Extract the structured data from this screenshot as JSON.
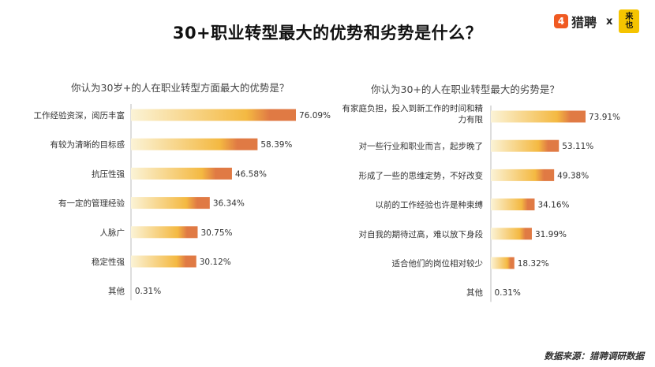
{
  "title": "30+职业转型最大的优势和劣势是什么？",
  "logo": {
    "brand": "猎聘",
    "brand_icon_glyph": "4",
    "separator": "x",
    "partner_top": "来",
    "partner_bottom": "也"
  },
  "source": "数据来源：猎聘调研数据",
  "colors": {
    "bar_light": "#fbf3d6",
    "bar_mid": "#f4b942",
    "bar_dark": "#e07a44",
    "baseline": "#bbbbbb",
    "brand": "#f05a22",
    "partner": "#f5c400"
  },
  "chart_data": [
    {
      "type": "bar",
      "orientation": "horizontal",
      "title": "你认为30岁+的人在职业转型方面最大的优势是？",
      "unit": "%",
      "categories": [
        "工作经验资深，阅历丰富",
        "有较为清晰的目标感",
        "抗压性强",
        "有一定的管理经验",
        "人脉广",
        "稳定性强",
        "其他"
      ],
      "values": [
        76.09,
        58.39,
        46.58,
        36.34,
        30.75,
        30.12,
        0.31
      ],
      "labels": [
        "76.09%",
        "58.39%",
        "46.58%",
        "36.34%",
        "30.75%",
        "30.12%",
        "0.31%"
      ],
      "xlim": [
        0,
        80
      ]
    },
    {
      "type": "bar",
      "orientation": "horizontal",
      "title": "你认为30+的人在职业转型最大的劣势是？",
      "unit": "%",
      "categories": [
        [
          "有家庭负担，投入到新工作的时间和精",
          "力有限"
        ],
        [
          "对一些行业和职业而言，起步晚了"
        ],
        [
          "形成了一些的思维定势，不好改变"
        ],
        [
          "以前的工作经验也许是种束缚"
        ],
        [
          "对自我的期待过高，难以放下身段"
        ],
        [
          "适合他们的岗位相对较少"
        ],
        [
          "其他"
        ]
      ],
      "values": [
        73.91,
        53.11,
        49.38,
        34.16,
        31.99,
        18.32,
        0.31
      ],
      "labels": [
        "73.91%",
        "53.11%",
        "49.38%",
        "34.16%",
        "31.99%",
        "18.32%",
        "0.31%"
      ],
      "xlim": [
        0,
        80
      ]
    }
  ]
}
